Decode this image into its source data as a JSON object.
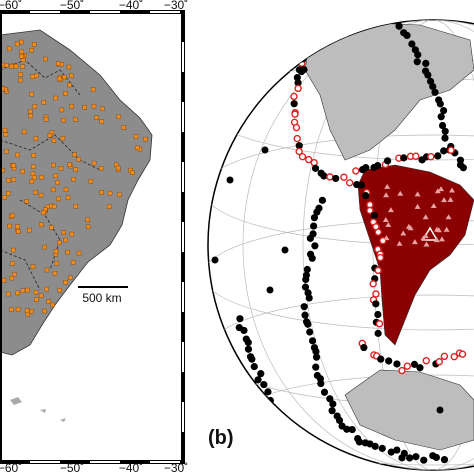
{
  "panel_a": {
    "top_ticks": [
      "−60˚",
      "−50˚",
      "−40˚",
      "−30˚"
    ],
    "bottom_ticks": [
      "−60˚",
      "−50˚",
      "−40˚",
      "−30˚"
    ],
    "scale_label": "500 km"
  },
  "panel_b": {
    "label": "(b)"
  }
}
